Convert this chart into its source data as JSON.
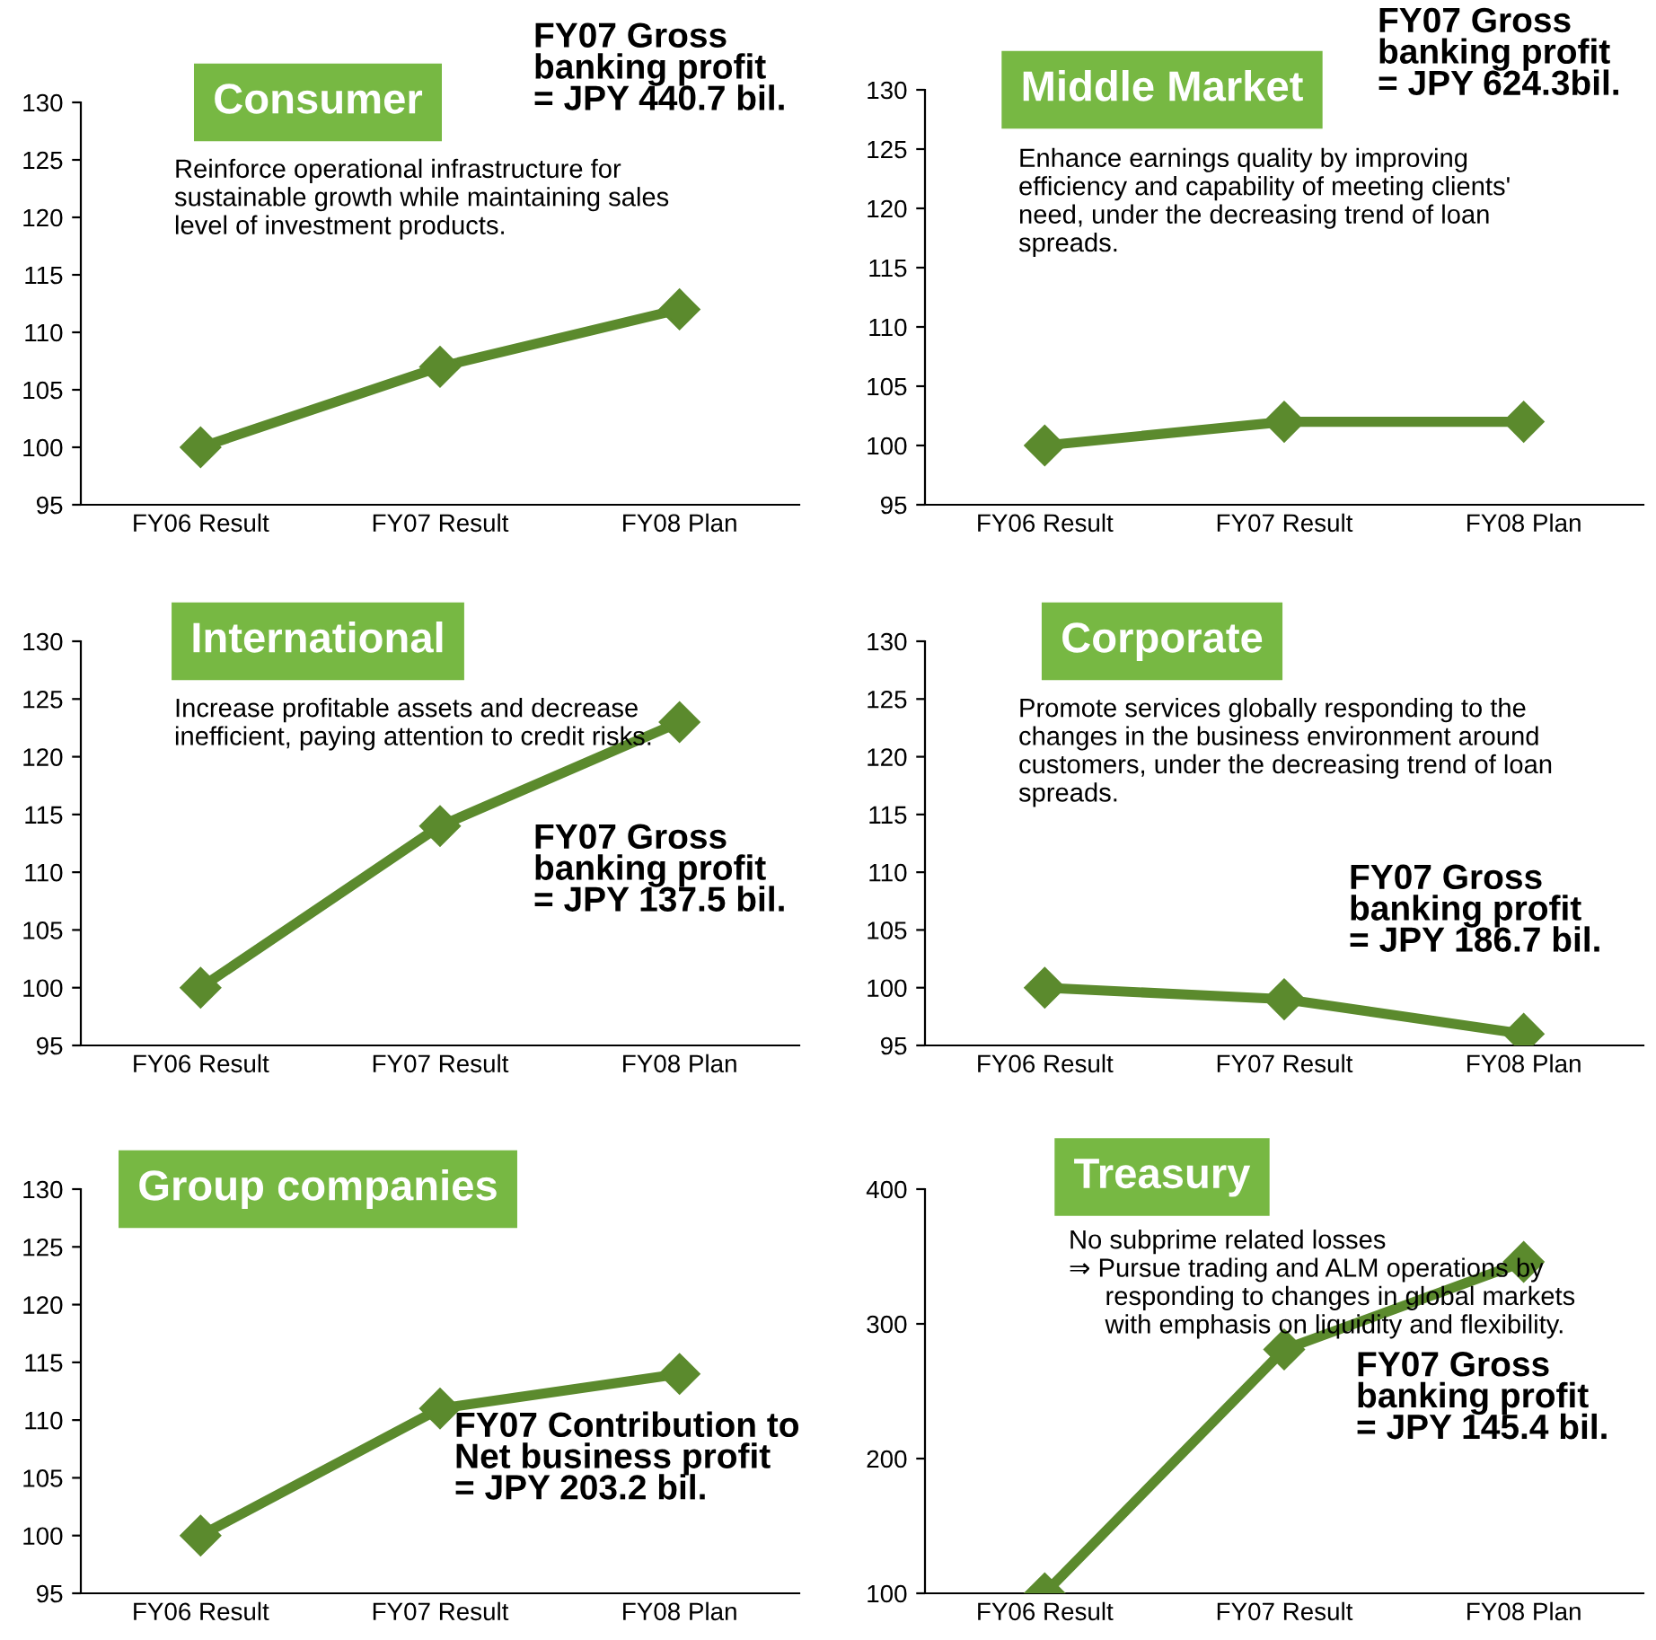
{
  "chart_data": [
    {
      "type": "line",
      "title": "Consumer",
      "categories": [
        "FY06 Result",
        "FY07 Result",
        "FY08 Plan"
      ],
      "series": [
        {
          "color": "#5b8a2d",
          "values": [
            100,
            107,
            112
          ]
        }
      ],
      "ylim": [
        95,
        130
      ],
      "yticks": [
        95,
        100,
        105,
        110,
        115,
        120,
        125,
        130
      ],
      "marker": "diamond",
      "line_style": "solid",
      "grid": false,
      "legend": false,
      "annotations": [
        "Reinforce operational infrastructure for\nsustainable growth while maintaining sales\nlevel of investment products.",
        "FY07 Gross\nbanking profit\n= JPY 440.7 bil."
      ]
    },
    {
      "type": "line",
      "title": "Middle Market",
      "categories": [
        "FY06 Result",
        "FY07 Result",
        "FY08 Plan"
      ],
      "series": [
        {
          "color": "#5b8a2d",
          "values": [
            100,
            102,
            102
          ]
        }
      ],
      "ylim": [
        95,
        130
      ],
      "yticks": [
        95,
        100,
        105,
        110,
        115,
        120,
        125,
        130
      ],
      "marker": "diamond",
      "line_style": "solid",
      "grid": false,
      "legend": false,
      "annotations": [
        "Enhance earnings quality by improving\nefficiency and capability of meeting clients'\nneed, under the decreasing trend of loan\nspreads.",
        "FY07 Gross\nbanking profit\n= JPY 624.3bil."
      ]
    },
    {
      "type": "line",
      "title": "International",
      "categories": [
        "FY06 Result",
        "FY07 Result",
        "FY08 Plan"
      ],
      "series": [
        {
          "color": "#5b8a2d",
          "values": [
            100,
            114,
            123
          ]
        }
      ],
      "ylim": [
        95,
        130
      ],
      "yticks": [
        95,
        100,
        105,
        110,
        115,
        120,
        125,
        130
      ],
      "marker": "diamond",
      "line_style": "solid",
      "grid": false,
      "legend": false,
      "annotations": [
        "Increase profitable assets and decrease\ninefficient, paying attention to credit risks.",
        "FY07 Gross\nbanking profit\n= JPY 137.5 bil."
      ]
    },
    {
      "type": "line",
      "title": "Corporate",
      "categories": [
        "FY06 Result",
        "FY07 Result",
        "FY08 Plan"
      ],
      "series": [
        {
          "color": "#5b8a2d",
          "values": [
            100,
            99,
            96
          ]
        }
      ],
      "ylim": [
        95,
        130
      ],
      "yticks": [
        95,
        100,
        105,
        110,
        115,
        120,
        125,
        130
      ],
      "marker": "diamond",
      "line_style": "solid",
      "grid": false,
      "legend": false,
      "annotations": [
        "Promote services globally responding to the\nchanges in the business environment around\ncustomers, under the decreasing trend of loan\nspreads.",
        "FY07 Gross\nbanking profit\n= JPY 186.7 bil."
      ]
    },
    {
      "type": "line",
      "title": "Group companies",
      "categories": [
        "FY06 Result",
        "FY07 Result",
        "FY08 Plan"
      ],
      "series": [
        {
          "color": "#5b8a2d",
          "values": [
            100,
            111,
            114
          ]
        }
      ],
      "ylim": [
        95,
        130
      ],
      "yticks": [
        95,
        100,
        105,
        110,
        115,
        120,
        125,
        130
      ],
      "marker": "diamond",
      "line_style": "solid",
      "grid": false,
      "legend": false,
      "annotations": [
        "FY07 Contribution to\nNet business profit\n= JPY 203.2 bil."
      ]
    },
    {
      "type": "line",
      "title": "Treasury",
      "categories": [
        "FY06 Result",
        "FY07 Result",
        "FY08 Plan"
      ],
      "series": [
        {
          "color": "#5b8a2d",
          "values": [
            100,
            281,
            346
          ]
        }
      ],
      "ylim": [
        100,
        400
      ],
      "yticks": [
        100,
        200,
        300,
        400
      ],
      "marker": "diamond",
      "line_style": "solid",
      "grid": false,
      "legend": false,
      "annotations": [
        "No subprime related losses\n⇒ Pursue trading and ALM operations by\n     responding to changes in global markets\n     with emphasis on liquidity and flexibility.",
        "FY07 Gross\nbanking profit\n= JPY 145.4 bil."
      ]
    }
  ]
}
